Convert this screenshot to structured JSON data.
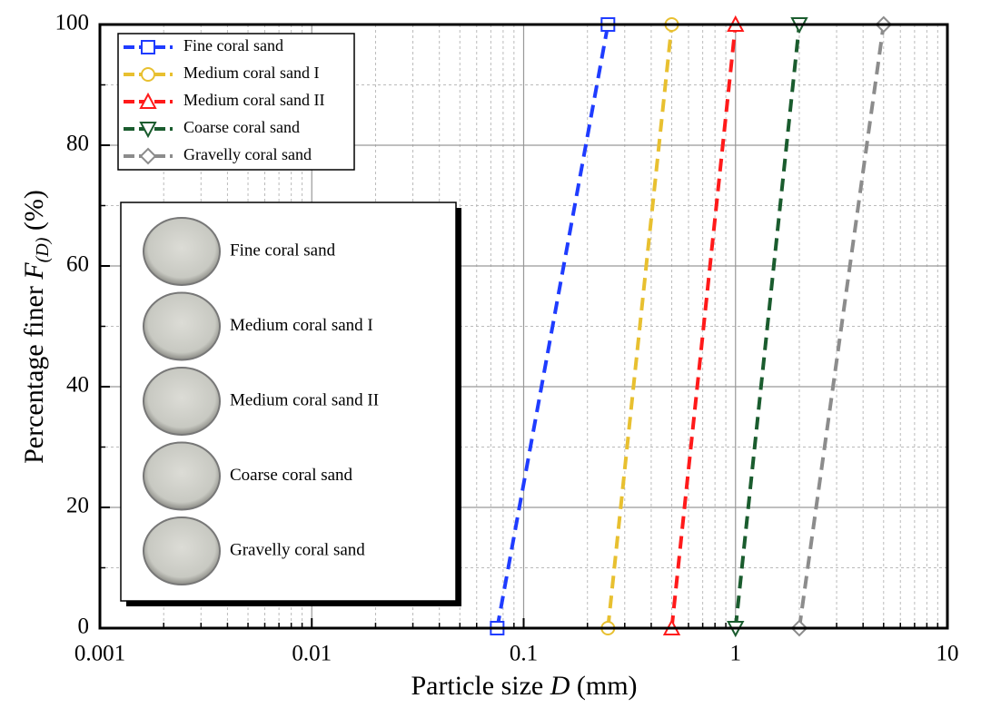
{
  "chart_data": {
    "type": "line",
    "xscale": "log",
    "xlabel": "Particle size",
    "xlabel_symbol": "D",
    "xlabel_unit": "(mm)",
    "ylabel": "Percentage finer",
    "ylabel_symbol": "F",
    "ylabel_subscript": "(D)",
    "ylabel_unit": "(%)",
    "xlim": [
      0.001,
      10
    ],
    "xticks": [
      0.001,
      0.01,
      0.1,
      1,
      10
    ],
    "ylim": [
      0,
      100
    ],
    "yticks": [
      0,
      20,
      40,
      60,
      80,
      100
    ],
    "grid": true,
    "legend": "upper left",
    "series": [
      {
        "name": "Fine coral sand",
        "color": "#1f3cff",
        "marker": "square",
        "x": [
          0.075,
          0.25
        ],
        "values": [
          0,
          100
        ]
      },
      {
        "name": "Medium coral sand I",
        "color": "#e8c030",
        "marker": "circle",
        "x": [
          0.25,
          0.5
        ],
        "values": [
          0,
          100
        ]
      },
      {
        "name": "Medium coral sand II",
        "color": "#ff1a1a",
        "marker": "triangle-up",
        "x": [
          0.5,
          1
        ],
        "values": [
          0,
          100
        ]
      },
      {
        "name": "Coarse coral sand",
        "color": "#1a5c2e",
        "marker": "triangle-down",
        "x": [
          1,
          2
        ],
        "values": [
          0,
          100
        ]
      },
      {
        "name": "Gravelly coral sand",
        "color": "#8c8c8c",
        "marker": "diamond",
        "x": [
          2,
          5
        ],
        "values": [
          0,
          100
        ]
      }
    ],
    "inset_labels": [
      "Fine coral sand",
      "Medium coral sand I",
      "Medium coral sand II",
      "Coarse coral sand",
      "Gravelly coral sand"
    ]
  }
}
